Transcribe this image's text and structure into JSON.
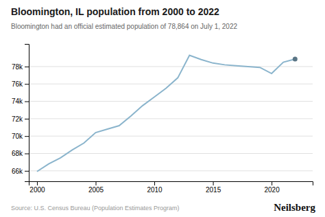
{
  "chart_data": {
    "type": "line",
    "title": "Bloomington, IL population from 2000 to 2022",
    "subtitle": "Bloomington had an official estimated population of 78,864 on July 1, 2022",
    "annotations": [
      "Source: U.S. Census Bureau (Population Estimates Program)",
      "Neilsberg"
    ],
    "x": [
      2000,
      2001,
      2002,
      2003,
      2004,
      2005,
      2006,
      2007,
      2008,
      2009,
      2010,
      2011,
      2012,
      2013,
      2014,
      2015,
      2016,
      2017,
      2018,
      2019,
      2020,
      2021,
      2022
    ],
    "values": [
      65926,
      66800,
      67500,
      68400,
      69200,
      70400,
      70800,
      71200,
      72300,
      73500,
      74500,
      75500,
      76700,
      79300,
      78800,
      78400,
      78200,
      78100,
      78000,
      77900,
      77200,
      78500,
      78864
    ],
    "color": "#8ab4cc",
    "marker": "end",
    "xlim": [
      1999.3,
      2023.5
    ],
    "xticks": [
      2000,
      2005,
      2010,
      2015,
      2020
    ],
    "ylim": [
      64800,
      80600
    ],
    "yticks": [
      {
        "value": 66000,
        "label": "66k"
      },
      {
        "value": 68000,
        "label": "68k"
      },
      {
        "value": 70000,
        "label": "70k"
      },
      {
        "value": 72000,
        "label": "72k"
      },
      {
        "value": 74000,
        "label": "74k"
      },
      {
        "value": 76000,
        "label": "76k"
      },
      {
        "value": 78000,
        "label": "78k"
      }
    ],
    "grid": true
  }
}
